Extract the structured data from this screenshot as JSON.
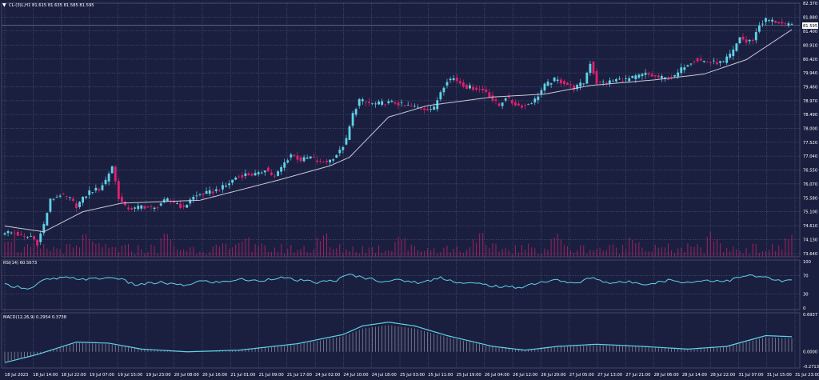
{
  "colors": {
    "background": "#1b1f3f",
    "grid": "#5a6082",
    "text": "#ffffff",
    "candle_up": "#5fd3e8",
    "candle_down": "#e0206f",
    "ma_line": "#c8c8d6",
    "volume": "#c0206a",
    "rsi_line": "#5fd3e8",
    "macd_line": "#5fd3e8",
    "macd_hist": "#c8c8d6",
    "price_tag_bg": "#ffffff"
  },
  "header": {
    "menu_icon": "triangle-down-icon",
    "info_text": "CL-(3)L,H1  81.615 81.635 81.585 81.595"
  },
  "current_price": "81.595",
  "rsi_label": "RSI(14) 60.5673",
  "macd_label": "MACD(12,26,9) 0.2954 0.3738",
  "chart_data": [
    {
      "type": "candlestick",
      "title": "CL-(3)L,H1",
      "ylim": [
        73.64,
        82.37
      ],
      "y_ticks": [
        "82.370",
        "81.880",
        "81.400",
        "80.910",
        "80.420",
        "79.940",
        "79.460",
        "78.970",
        "78.490",
        "78.000",
        "77.520",
        "77.040",
        "76.550",
        "76.070",
        "75.580",
        "75.100",
        "74.610",
        "74.130",
        "73.640"
      ],
      "x_ticks": [
        "18 Jul 2023",
        "18 Jul 14:00",
        "18 Jul 22:00",
        "19 Jul 07:00",
        "19 Jul 15:00",
        "19 Jul 23:00",
        "20 Jul 08:00",
        "20 Jul 16:00",
        "21 Jul 01:00",
        "21 Jul 09:00",
        "21 Jul 17:00",
        "24 Jul 02:00",
        "24 Jul 10:00",
        "24 Jul 18:00",
        "25 Jul 03:00",
        "25 Jul 11:00",
        "25 Jul 19:00",
        "26 Jul 04:00",
        "26 Jul 12:00",
        "26 Jul 20:00",
        "27 Jul 05:00",
        "27 Jul 13:00",
        "27 Jul 21:00",
        "28 Jul 06:00",
        "28 Jul 14:00",
        "28 Jul 22:00",
        "31 Jul 07:00",
        "31 Jul 15:00",
        "31 Jul 23:00"
      ],
      "close_anchors": [
        [
          0,
          74.4
        ],
        [
          3,
          74.35
        ],
        [
          6,
          74.2
        ],
        [
          8,
          74.25
        ],
        [
          10,
          74.0
        ],
        [
          12,
          74.65
        ],
        [
          14,
          75.5
        ],
        [
          17,
          75.7
        ],
        [
          20,
          75.55
        ],
        [
          22,
          75.3
        ],
        [
          26,
          75.8
        ],
        [
          29,
          75.9
        ],
        [
          31,
          76.2
        ],
        [
          33,
          76.7
        ],
        [
          35,
          75.6
        ],
        [
          37,
          75.25
        ],
        [
          40,
          75.2
        ],
        [
          42,
          75.3
        ],
        [
          46,
          75.2
        ],
        [
          48,
          75.4
        ],
        [
          50,
          75.5
        ],
        [
          53,
          75.4
        ],
        [
          55,
          75.2
        ],
        [
          57,
          75.55
        ],
        [
          60,
          75.7
        ],
        [
          64,
          75.8
        ],
        [
          68,
          76.0
        ],
        [
          71,
          76.3
        ],
        [
          74,
          76.4
        ],
        [
          78,
          76.4
        ],
        [
          80,
          76.6
        ],
        [
          83,
          76.3
        ],
        [
          86,
          76.8
        ],
        [
          88,
          77.1
        ],
        [
          91,
          76.9
        ],
        [
          94,
          77.0
        ],
        [
          97,
          76.8
        ],
        [
          100,
          76.9
        ],
        [
          103,
          77.2
        ],
        [
          105,
          77.6
        ],
        [
          107,
          78.5
        ],
        [
          109,
          79.0
        ],
        [
          111,
          78.9
        ],
        [
          114,
          78.85
        ],
        [
          117,
          78.9
        ],
        [
          120,
          78.9
        ],
        [
          123,
          78.8
        ],
        [
          126,
          78.75
        ],
        [
          129,
          78.7
        ],
        [
          132,
          78.7
        ],
        [
          134,
          79.3
        ],
        [
          136,
          79.7
        ],
        [
          138,
          79.75
        ],
        [
          140,
          79.6
        ],
        [
          142,
          79.45
        ],
        [
          145,
          79.4
        ],
        [
          148,
          79.3
        ],
        [
          150,
          79.0
        ],
        [
          152,
          78.8
        ],
        [
          154,
          79.1
        ],
        [
          156,
          78.9
        ],
        [
          158,
          78.8
        ],
        [
          160,
          78.8
        ],
        [
          163,
          79.0
        ],
        [
          166,
          79.5
        ],
        [
          169,
          79.7
        ],
        [
          172,
          79.6
        ],
        [
          175,
          79.4
        ],
        [
          178,
          79.6
        ],
        [
          180,
          80.3
        ],
        [
          182,
          79.6
        ],
        [
          185,
          79.6
        ],
        [
          188,
          79.7
        ],
        [
          191,
          79.7
        ],
        [
          194,
          79.8
        ],
        [
          197,
          79.9
        ],
        [
          200,
          79.8
        ],
        [
          203,
          79.75
        ],
        [
          206,
          79.8
        ],
        [
          209,
          80.2
        ],
        [
          212,
          80.4
        ],
        [
          215,
          80.35
        ],
        [
          218,
          80.3
        ],
        [
          221,
          80.3
        ],
        [
          224,
          80.7
        ],
        [
          226,
          81.2
        ],
        [
          228,
          81.0
        ],
        [
          230,
          81.1
        ],
        [
          232,
          81.6
        ],
        [
          234,
          81.8
        ],
        [
          236,
          81.75
        ],
        [
          238,
          81.7
        ],
        [
          240,
          81.6
        ],
        [
          242,
          81.6
        ]
      ],
      "series": [
        {
          "name": "MA",
          "anchors": [
            [
              0,
              74.6
            ],
            [
              12,
              74.4
            ],
            [
              24,
              75.1
            ],
            [
              36,
              75.4
            ],
            [
              60,
              75.5
            ],
            [
              84,
              76.2
            ],
            [
              100,
              76.7
            ],
            [
              106,
              77.0
            ],
            [
              118,
              78.4
            ],
            [
              130,
              78.8
            ],
            [
              150,
              79.1
            ],
            [
              166,
              79.2
            ],
            [
              180,
              79.5
            ],
            [
              200,
              79.7
            ],
            [
              215,
              79.9
            ],
            [
              228,
              80.4
            ],
            [
              242,
              81.45
            ]
          ]
        }
      ]
    },
    {
      "type": "line",
      "title": "RSI(14)",
      "ylim": [
        0,
        100
      ],
      "y_ticks": [
        "100",
        "70",
        "30",
        "0"
      ],
      "series": [
        {
          "name": "RSI(14)",
          "anchors": [
            [
              0,
              50
            ],
            [
              8,
              42
            ],
            [
              12,
              60
            ],
            [
              18,
              65
            ],
            [
              26,
              62
            ],
            [
              34,
              66
            ],
            [
              40,
              50
            ],
            [
              48,
              55
            ],
            [
              55,
              48
            ],
            [
              60,
              58
            ],
            [
              66,
              55
            ],
            [
              72,
              62
            ],
            [
              78,
              58
            ],
            [
              84,
              66
            ],
            [
              90,
              60
            ],
            [
              96,
              55
            ],
            [
              102,
              60
            ],
            [
              106,
              72
            ],
            [
              110,
              66
            ],
            [
              116,
              58
            ],
            [
              122,
              60
            ],
            [
              128,
              54
            ],
            [
              134,
              66
            ],
            [
              140,
              54
            ],
            [
              146,
              52
            ],
            [
              152,
              46
            ],
            [
              158,
              44
            ],
            [
              164,
              55
            ],
            [
              170,
              60
            ],
            [
              176,
              52
            ],
            [
              180,
              66
            ],
            [
              186,
              54
            ],
            [
              192,
              56
            ],
            [
              198,
              52
            ],
            [
              204,
              60
            ],
            [
              210,
              55
            ],
            [
              216,
              60
            ],
            [
              222,
              58
            ],
            [
              228,
              70
            ],
            [
              234,
              66
            ],
            [
              238,
              58
            ],
            [
              242,
              60
            ]
          ]
        }
      ]
    },
    {
      "type": "line",
      "title": "MACD(12,26,9)",
      "ylim": [
        -0.2713,
        0.6937
      ],
      "y_ticks": [
        "0.6937",
        "0.0000",
        "-0.2713"
      ],
      "series": [
        {
          "name": "MACD",
          "anchors": [
            [
              0,
              -0.2
            ],
            [
              10,
              -0.05
            ],
            [
              22,
              0.18
            ],
            [
              32,
              0.16
            ],
            [
              42,
              0.05
            ],
            [
              56,
              0.0
            ],
            [
              72,
              0.03
            ],
            [
              90,
              0.15
            ],
            [
              104,
              0.32
            ],
            [
              110,
              0.48
            ],
            [
              118,
              0.55
            ],
            [
              126,
              0.48
            ],
            [
              136,
              0.3
            ],
            [
              150,
              0.1
            ],
            [
              160,
              0.03
            ],
            [
              170,
              0.1
            ],
            [
              182,
              0.14
            ],
            [
              196,
              0.1
            ],
            [
              210,
              0.05
            ],
            [
              222,
              0.1
            ],
            [
              234,
              0.3
            ],
            [
              242,
              0.28
            ]
          ]
        }
      ]
    }
  ]
}
